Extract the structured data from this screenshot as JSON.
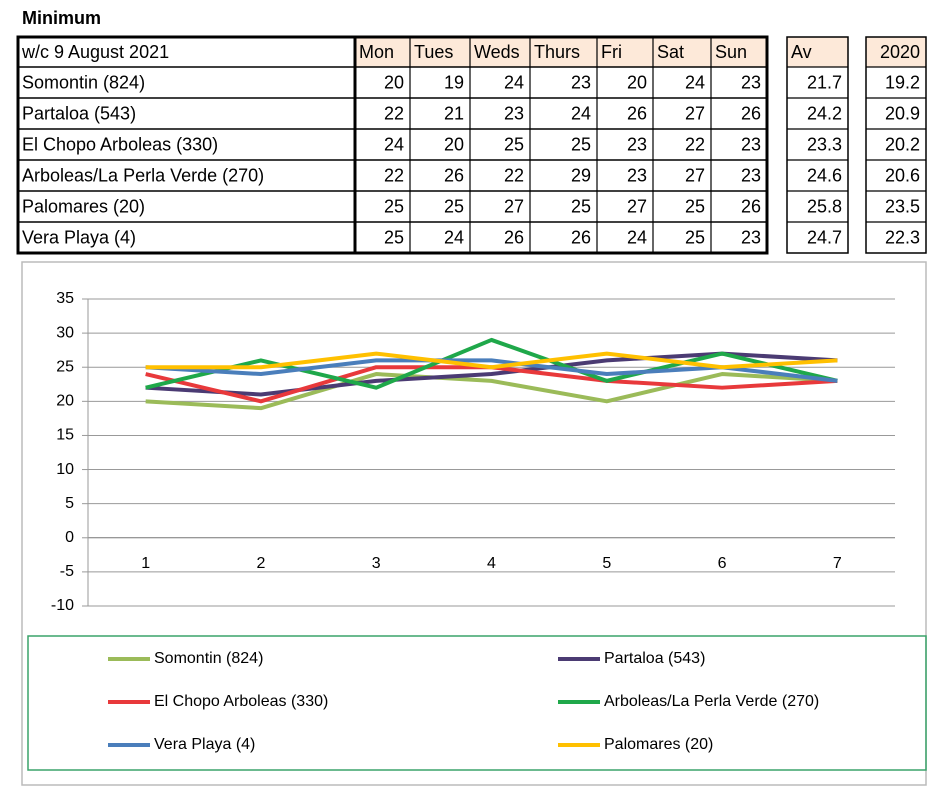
{
  "table": {
    "title": "Minimum",
    "columns": [
      "w/c 9 August 2021",
      "Mon",
      "Tues",
      "Weds",
      "Thurs",
      "Fri",
      "Sat",
      "Sun",
      "Av",
      "2020"
    ],
    "rows": [
      [
        "Somontin (824)",
        20,
        19,
        24,
        23,
        20,
        24,
        23,
        21.7,
        19.2
      ],
      [
        "Partaloa (543)",
        22,
        21,
        23,
        24,
        26,
        27,
        26,
        24.2,
        20.9
      ],
      [
        "El Chopo Arboleas (330)",
        24,
        20,
        25,
        25,
        23,
        22,
        23,
        23.3,
        20.2
      ],
      [
        "Arboleas/La Perla Verde (270)",
        22,
        26,
        22,
        29,
        23,
        27,
        23,
        24.6,
        20.6
      ],
      [
        "Palomares (20)",
        25,
        25,
        27,
        25,
        27,
        25,
        26,
        25.8,
        23.5
      ],
      [
        "Vera Playa (4)",
        25,
        24,
        26,
        26,
        24,
        25,
        23,
        24.7,
        22.3
      ]
    ]
  },
  "chart_data": {
    "type": "line",
    "categories": [
      1,
      2,
      3,
      4,
      5,
      6,
      7
    ],
    "ylim": [
      -10,
      35
    ],
    "yticks": [
      -10,
      -5,
      0,
      5,
      10,
      15,
      20,
      25,
      30,
      35
    ],
    "grid": true,
    "series": [
      {
        "name": "Somontin (824)",
        "color": "#9bbb59",
        "values": [
          20,
          19,
          24,
          23,
          20,
          24,
          23
        ]
      },
      {
        "name": "Partaloa (543)",
        "color": "#4b3b73",
        "values": [
          22,
          21,
          23,
          24,
          26,
          27,
          26
        ]
      },
      {
        "name": "El Chopo Arboleas (330)",
        "color": "#e8393b",
        "values": [
          24,
          20,
          25,
          25,
          23,
          22,
          23
        ]
      },
      {
        "name": "Arboleas/La Perla Verde (270)",
        "color": "#1fa84a",
        "values": [
          22,
          26,
          22,
          29,
          23,
          27,
          23
        ]
      },
      {
        "name": "Vera Playa (4)",
        "color": "#4a7ebb",
        "values": [
          25,
          24,
          26,
          26,
          24,
          25,
          23
        ]
      },
      {
        "name": "Palomares (20)",
        "color": "#ffc000",
        "values": [
          25,
          25,
          27,
          25,
          27,
          25,
          26
        ]
      }
    ]
  }
}
